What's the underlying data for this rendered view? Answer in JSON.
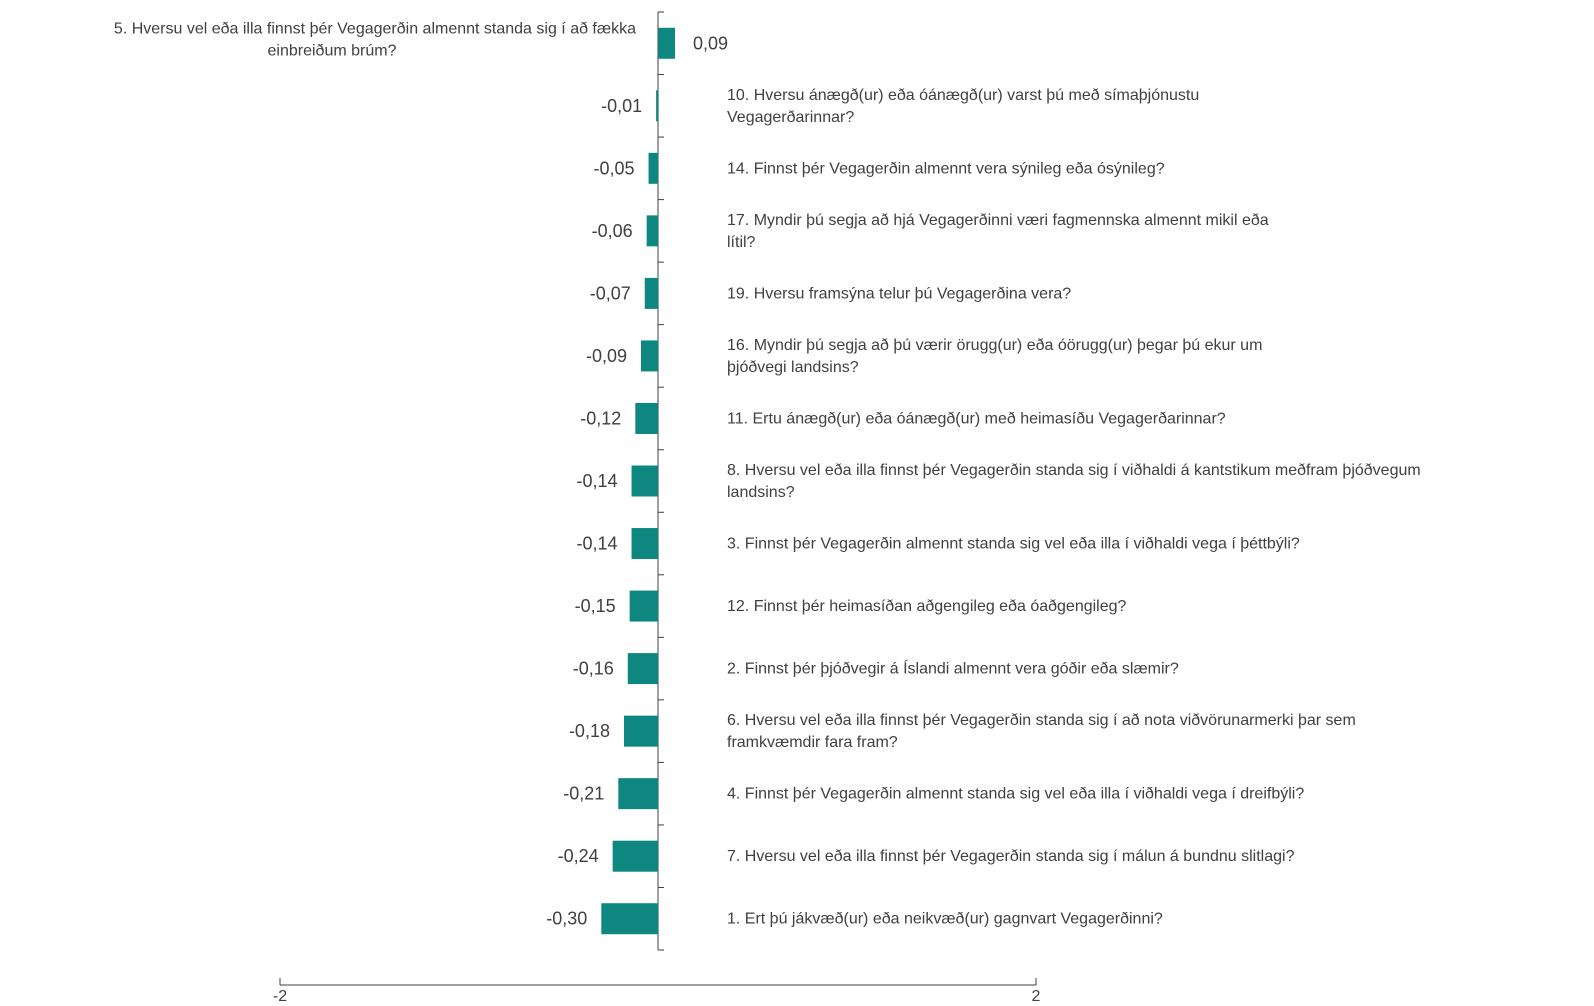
{
  "chart_data": {
    "type": "bar",
    "orientation": "horizontal",
    "bar_color": "#0E8780",
    "axis_color": "#404040",
    "xlim": [
      -2,
      2
    ],
    "x_ticks": [
      "-2",
      "2"
    ],
    "grid": false,
    "legend": "none",
    "title": "",
    "xlabel": "",
    "ylabel": "",
    "categories": [
      [
        "5. Hversu vel eða illa finnst þér Vegagerðin almennt standa sig í að fækka",
        "einbreiðum brúm?"
      ],
      [
        "10. Hversu ánægð(ur) eða óánægð(ur) varst þú með símaþjónustu",
        "Vegagerðarinnar?"
      ],
      [
        "14. Finnst þér Vegagerðin almennt vera sýnileg eða ósýnileg?"
      ],
      [
        "17. Myndir þú segja að hjá Vegagerðinni væri fagmennska almennt mikil eða",
        "lítil?"
      ],
      [
        "19. Hversu framsýna telur þú Vegagerðina vera?"
      ],
      [
        "16. Myndir þú segja að þú værir örugg(ur) eða óörugg(ur) þegar þú ekur um",
        "þjóðvegi landsins?"
      ],
      [
        "11. Ertu ánægð(ur) eða óánægð(ur) með heimasíðu Vegagerðarinnar?"
      ],
      [
        "8. Hversu vel eða illa finnst þér Vegagerðin standa sig í viðhaldi á kantstikum meðfram þjóðvegum",
        "landsins?"
      ],
      [
        "3. Finnst þér Vegagerðin almennt standa sig vel eða illa í viðhaldi vega í þéttbýli?"
      ],
      [
        "12. Finnst þér heimasíðan aðgengileg eða óaðgengileg?"
      ],
      [
        "2. Finnst þér þjóðvegir á Íslandi almennt vera góðir eða slæmir?"
      ],
      [
        "6. Hversu vel eða illa finnst þér Vegagerðin standa sig í að nota viðvörunarmerki þar sem",
        "framkvæmdir fara fram?"
      ],
      [
        "4. Finnst þér Vegagerðin almennt standa sig vel eða illa í viðhaldi vega í dreifbýli?"
      ],
      [
        "7. Hversu vel eða illa finnst þér Vegagerðin standa sig í málun á bundnu slitlagi?"
      ],
      [
        "1. Ert þú jákvæð(ur) eða neikvæð(ur) gagnvart Vegagerðinni?"
      ]
    ],
    "values": [
      0.09,
      -0.01,
      -0.05,
      -0.06,
      -0.07,
      -0.09,
      -0.12,
      -0.14,
      -0.14,
      -0.15,
      -0.16,
      -0.18,
      -0.21,
      -0.24,
      -0.3
    ],
    "value_labels": [
      "0,09",
      "-0,01",
      "-0,05",
      "-0,06",
      "-0,07",
      "-0,09",
      "-0,12",
      "-0,14",
      "-0,14",
      "-0,15",
      "-0,16",
      "-0,18",
      "-0,21",
      "-0,24",
      "-0,30"
    ]
  }
}
